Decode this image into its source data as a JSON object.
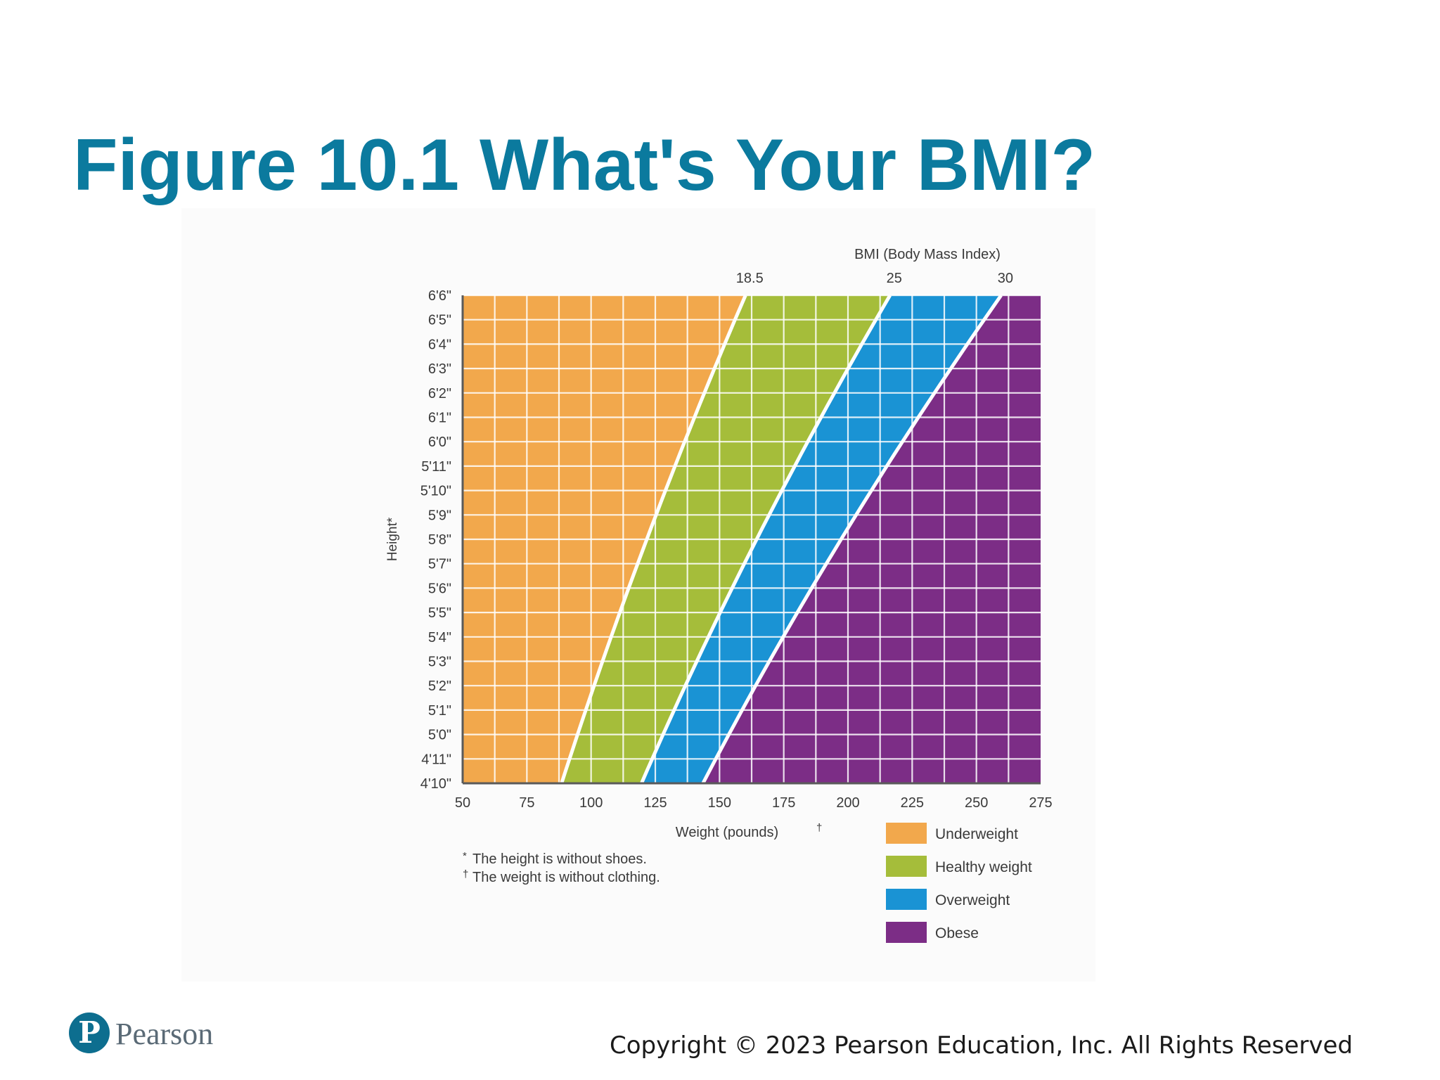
{
  "slide": {
    "title": "Figure 10.1 What's Your BMI?",
    "copyright": "Copyright © 2023 Pearson Education, Inc. All Rights Reserved",
    "logo_text": "Pearson",
    "logo_glyph": "P"
  },
  "colors": {
    "title": "#0b7a9e",
    "underweight": "#f2a84c",
    "healthy": "#a5bd3a",
    "overweight": "#1a93d4",
    "obese": "#7c2d86",
    "grid": "#ffffff"
  },
  "chart_data": {
    "type": "area",
    "title": "BMI (Body Mass Index)",
    "xlabel": "Weight (pounds)",
    "xlabel_mark": "†",
    "ylabel": "Height*",
    "x_ticks": [
      "50",
      "75",
      "100",
      "125",
      "150",
      "175",
      "200",
      "225",
      "250",
      "275"
    ],
    "xlim": [
      50,
      275
    ],
    "y_ticks": [
      "4'10\"",
      "4'11\"",
      "5'0\"",
      "5'1\"",
      "5'2\"",
      "5'3\"",
      "5'4\"",
      "5'5\"",
      "5'6\"",
      "5'7\"",
      "5'8\"",
      "5'9\"",
      "5'10\"",
      "5'11\"",
      "6'0\"",
      "6'1\"",
      "6'2\"",
      "6'3\"",
      "6'4\"",
      "6'5\"",
      "6'6\""
    ],
    "height_inches": [
      58,
      78
    ],
    "bmi_boundaries": [
      {
        "label": "18.5",
        "bmi": 18.5
      },
      {
        "label": "25",
        "bmi": 25
      },
      {
        "label": "30",
        "bmi": 30
      }
    ],
    "series": [
      {
        "name": "Underweight",
        "color": "#f2a84c"
      },
      {
        "name": "Healthy weight",
        "color": "#a5bd3a"
      },
      {
        "name": "Overweight",
        "color": "#1a93d4"
      },
      {
        "name": "Obese",
        "color": "#7c2d86"
      }
    ],
    "footnotes": [
      {
        "mark": "*",
        "text": "The height is without shoes."
      },
      {
        "mark": "†",
        "text": "The weight is without clothing."
      }
    ],
    "legend_position": "bottom-right",
    "grid": true
  }
}
